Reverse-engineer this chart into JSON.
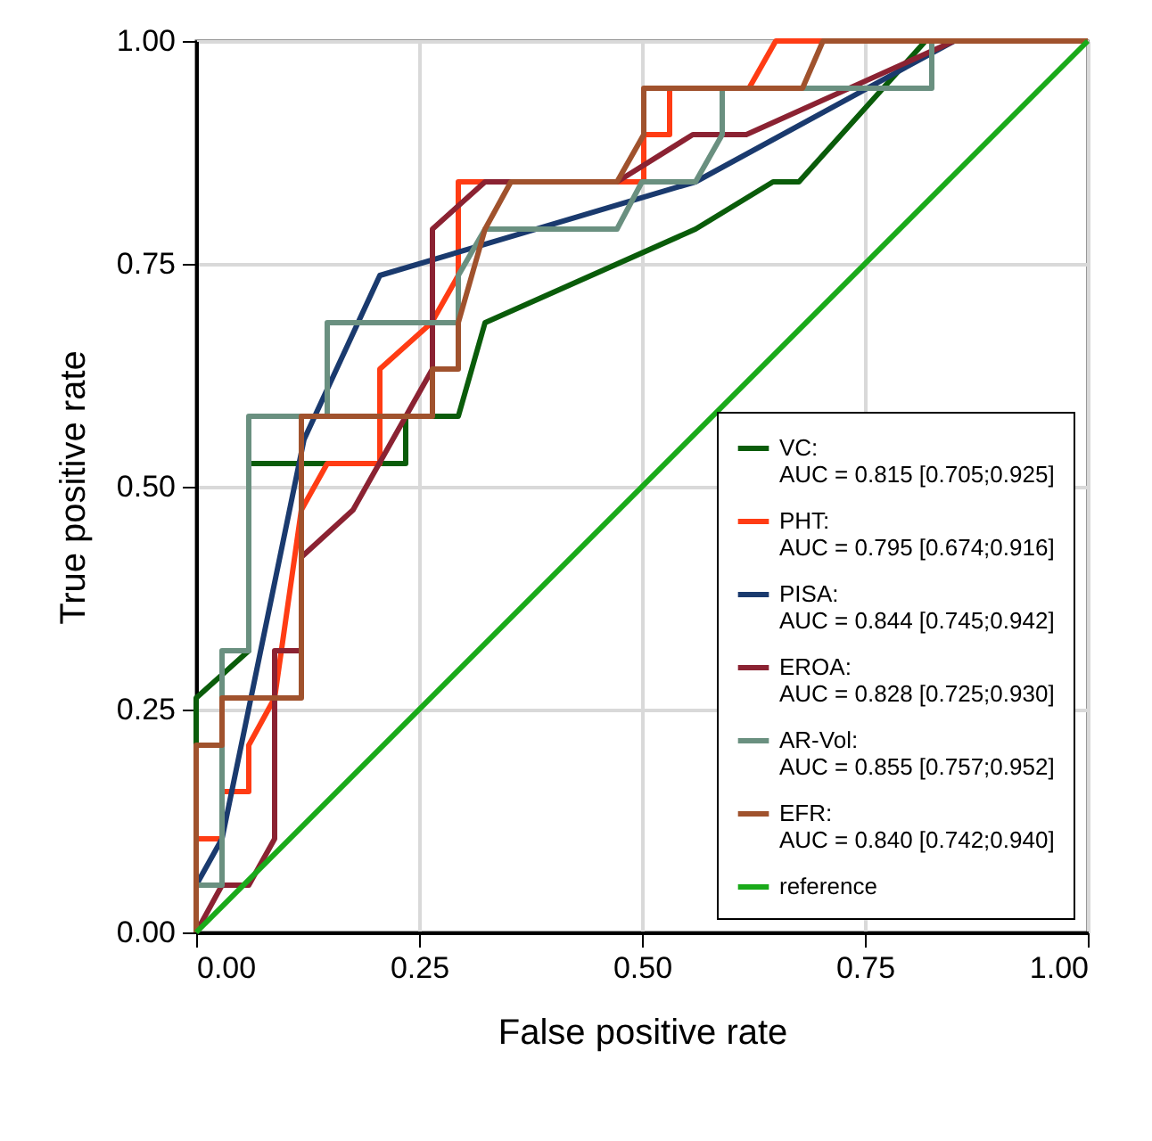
{
  "chart_data": {
    "type": "line",
    "xlabel": "False positive rate",
    "ylabel": "True positive rate",
    "xlim": [
      0,
      1
    ],
    "ylim": [
      0,
      1
    ],
    "xticks": [
      {
        "value": 0,
        "label": "0.00"
      },
      {
        "value": 0.25,
        "label": "0.25"
      },
      {
        "value": 0.5,
        "label": "0.50"
      },
      {
        "value": 0.75,
        "label": "0.75"
      },
      {
        "value": 1,
        "label": "1.00"
      }
    ],
    "yticks": [
      {
        "value": 0,
        "label": "0.00"
      },
      {
        "value": 0.25,
        "label": "0.25"
      },
      {
        "value": 0.5,
        "label": "0.50"
      },
      {
        "value": 0.75,
        "label": "0.75"
      },
      {
        "value": 1,
        "label": "1.00"
      }
    ],
    "grid": true,
    "legend": "bottom right",
    "line_style": "solid",
    "marker": "none",
    "series": [
      {
        "name": "VC:\nAUC = 0.815 [0.705;0.925]",
        "color": "#0a5c0a",
        "x": [
          0,
          0,
          0.059,
          0.059,
          0.235,
          0.235,
          0.294,
          0.324,
          0.56,
          0.647,
          0.676,
          0.818,
          1
        ],
        "values": [
          0,
          0.263,
          0.316,
          0.526,
          0.526,
          0.579,
          0.579,
          0.684,
          0.789,
          0.842,
          0.842,
          1,
          1
        ]
      },
      {
        "name": "PHT:\nAUC = 0.795 [0.674;0.916]",
        "color": "#ff3c14",
        "x": [
          0,
          0,
          0.029,
          0.029,
          0.059,
          0.059,
          0.088,
          0.118,
          0.147,
          0.206,
          0.206,
          0.264,
          0.294,
          0.294,
          0.502,
          0.502,
          0.531,
          0.531,
          0.62,
          0.65,
          1
        ],
        "values": [
          0,
          0.105,
          0.105,
          0.158,
          0.158,
          0.21,
          0.263,
          0.474,
          0.526,
          0.526,
          0.632,
          0.684,
          0.737,
          0.842,
          0.842,
          0.895,
          0.895,
          0.947,
          0.947,
          1,
          1
        ]
      },
      {
        "name": "PISA:\nAUC = 0.844 [0.745;0.942]",
        "color": "#1a3a6e",
        "x": [
          0,
          0,
          0.029,
          0.121,
          0.206,
          0.56,
          0.85,
          1
        ],
        "values": [
          0,
          0.053,
          0.105,
          0.553,
          0.737,
          0.842,
          1,
          1
        ]
      },
      {
        "name": "EROA:\nAUC = 0.828 [0.725;0.930]",
        "color": "#8b2232",
        "x": [
          0,
          0.029,
          0.059,
          0.088,
          0.088,
          0.118,
          0.118,
          0.176,
          0.265,
          0.265,
          0.324,
          0.472,
          0.557,
          0.617,
          0.85,
          1
        ],
        "values": [
          0,
          0.053,
          0.053,
          0.105,
          0.316,
          0.316,
          0.421,
          0.474,
          0.632,
          0.789,
          0.842,
          0.842,
          0.895,
          0.895,
          1,
          1
        ]
      },
      {
        "name": "AR-Vol:\nAUC = 0.855 [0.757;0.952]",
        "color": "#6a9080",
        "x": [
          0,
          0,
          0.029,
          0.029,
          0.059,
          0.059,
          0.147,
          0.147,
          0.294,
          0.294,
          0.324,
          0.472,
          0.5,
          0.56,
          0.59,
          0.59,
          0.825,
          0.825,
          1
        ],
        "values": [
          0,
          0.053,
          0.053,
          0.316,
          0.316,
          0.579,
          0.579,
          0.684,
          0.684,
          0.737,
          0.789,
          0.789,
          0.842,
          0.842,
          0.895,
          0.947,
          0.947,
          1,
          1
        ]
      },
      {
        "name": "EFR:\nAUC = 0.840 [0.742;0.940]",
        "color": "#a0522d",
        "x": [
          0,
          0,
          0.029,
          0.029,
          0.118,
          0.118,
          0.265,
          0.265,
          0.294,
          0.294,
          0.324,
          0.353,
          0.472,
          0.502,
          0.502,
          0.68,
          0.703,
          1
        ],
        "values": [
          0,
          0.21,
          0.21,
          0.263,
          0.263,
          0.579,
          0.579,
          0.632,
          0.632,
          0.684,
          0.789,
          0.842,
          0.842,
          0.895,
          0.947,
          0.947,
          1,
          1
        ]
      },
      {
        "name": "reference",
        "color": "#1aaa1a",
        "x": [
          0,
          1
        ],
        "values": [
          0,
          1
        ]
      }
    ]
  }
}
